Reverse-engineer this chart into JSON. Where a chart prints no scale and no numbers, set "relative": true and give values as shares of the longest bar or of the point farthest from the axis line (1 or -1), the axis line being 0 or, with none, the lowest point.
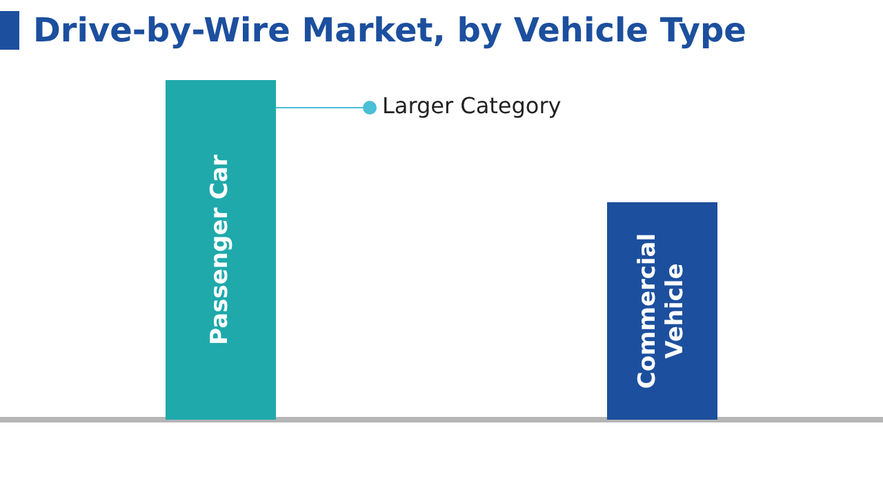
{
  "chart_data": {
    "type": "bar",
    "title": "Drive-by-Wire Market, by Vehicle Type",
    "categories": [
      "Passenger Car",
      "Commercial Vehicle"
    ],
    "values": [
      1,
      0.64
    ],
    "colors": [
      "#1fa9ab",
      "#1c4f9e"
    ],
    "relative": true,
    "annotations": [
      "Larger Category"
    ]
  }
}
